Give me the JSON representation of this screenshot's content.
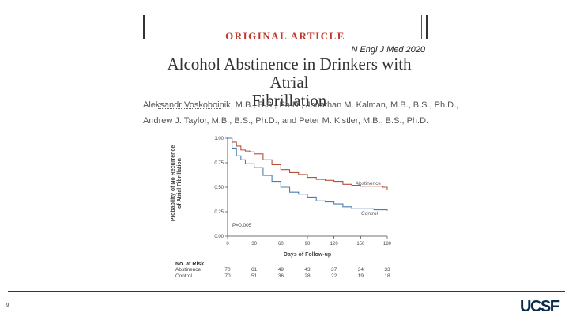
{
  "banner": "ORIGINAL ARTICLE",
  "citation": "N Engl J Med 2020",
  "title_line1": "Alcohol Abstinence in Drinkers with Atrial",
  "title_line2": "Fibrillation",
  "authors_line1": "Aleksandr Voskoboinik, M.B., B.S., Ph.D., Jonathan M. Kalman, M.B., B.S., Ph.D.,",
  "authors_line2": "Andrew J. Taylor, M.B., B.S., Ph.D., and Peter M. Kistler, M.B., B.S., Ph.D.",
  "chart_data": {
    "type": "line",
    "ylabel": "Probability of No Recurrence of Atrial Fibrillation",
    "xlabel": "Days of Follow-up",
    "ylim": [
      0,
      1
    ],
    "xlim": [
      0,
      180
    ],
    "yticks": [
      "0.00",
      "0.25",
      "0.50",
      "0.75",
      "1.00"
    ],
    "xticks": [
      "0",
      "30",
      "60",
      "90",
      "120",
      "150",
      "180"
    ],
    "annotation": "P=0.005",
    "series": [
      {
        "name": "Abstinence",
        "color": "#b5503f",
        "points": [
          [
            0,
            1.0
          ],
          [
            5,
            0.96
          ],
          [
            10,
            0.92
          ],
          [
            15,
            0.88
          ],
          [
            20,
            0.87
          ],
          [
            25,
            0.86
          ],
          [
            30,
            0.84
          ],
          [
            40,
            0.78
          ],
          [
            50,
            0.73
          ],
          [
            60,
            0.68
          ],
          [
            70,
            0.65
          ],
          [
            80,
            0.63
          ],
          [
            90,
            0.6
          ],
          [
            100,
            0.58
          ],
          [
            110,
            0.57
          ],
          [
            120,
            0.56
          ],
          [
            130,
            0.53
          ],
          [
            140,
            0.52
          ],
          [
            150,
            0.51
          ],
          [
            165,
            0.51
          ],
          [
            175,
            0.5
          ],
          [
            180,
            0.47
          ]
        ]
      },
      {
        "name": "Control",
        "color": "#4a7fb0",
        "points": [
          [
            0,
            1.0
          ],
          [
            5,
            0.9
          ],
          [
            10,
            0.82
          ],
          [
            15,
            0.78
          ],
          [
            20,
            0.74
          ],
          [
            30,
            0.7
          ],
          [
            40,
            0.62
          ],
          [
            50,
            0.56
          ],
          [
            60,
            0.5
          ],
          [
            70,
            0.45
          ],
          [
            80,
            0.43
          ],
          [
            90,
            0.4
          ],
          [
            100,
            0.36
          ],
          [
            110,
            0.35
          ],
          [
            120,
            0.33
          ],
          [
            130,
            0.3
          ],
          [
            140,
            0.28
          ],
          [
            150,
            0.28
          ],
          [
            165,
            0.27
          ],
          [
            180,
            0.26
          ]
        ]
      }
    ]
  },
  "risk": {
    "title": "No. at Risk",
    "rows": [
      {
        "name": "Abstinence",
        "values": [
          "70",
          "61",
          "49",
          "43",
          "37",
          "34",
          "33"
        ]
      },
      {
        "name": "Control",
        "values": [
          "70",
          "51",
          "36",
          "28",
          "22",
          "19",
          "18"
        ]
      }
    ]
  },
  "slide_number": "9",
  "logo": "UCSF"
}
